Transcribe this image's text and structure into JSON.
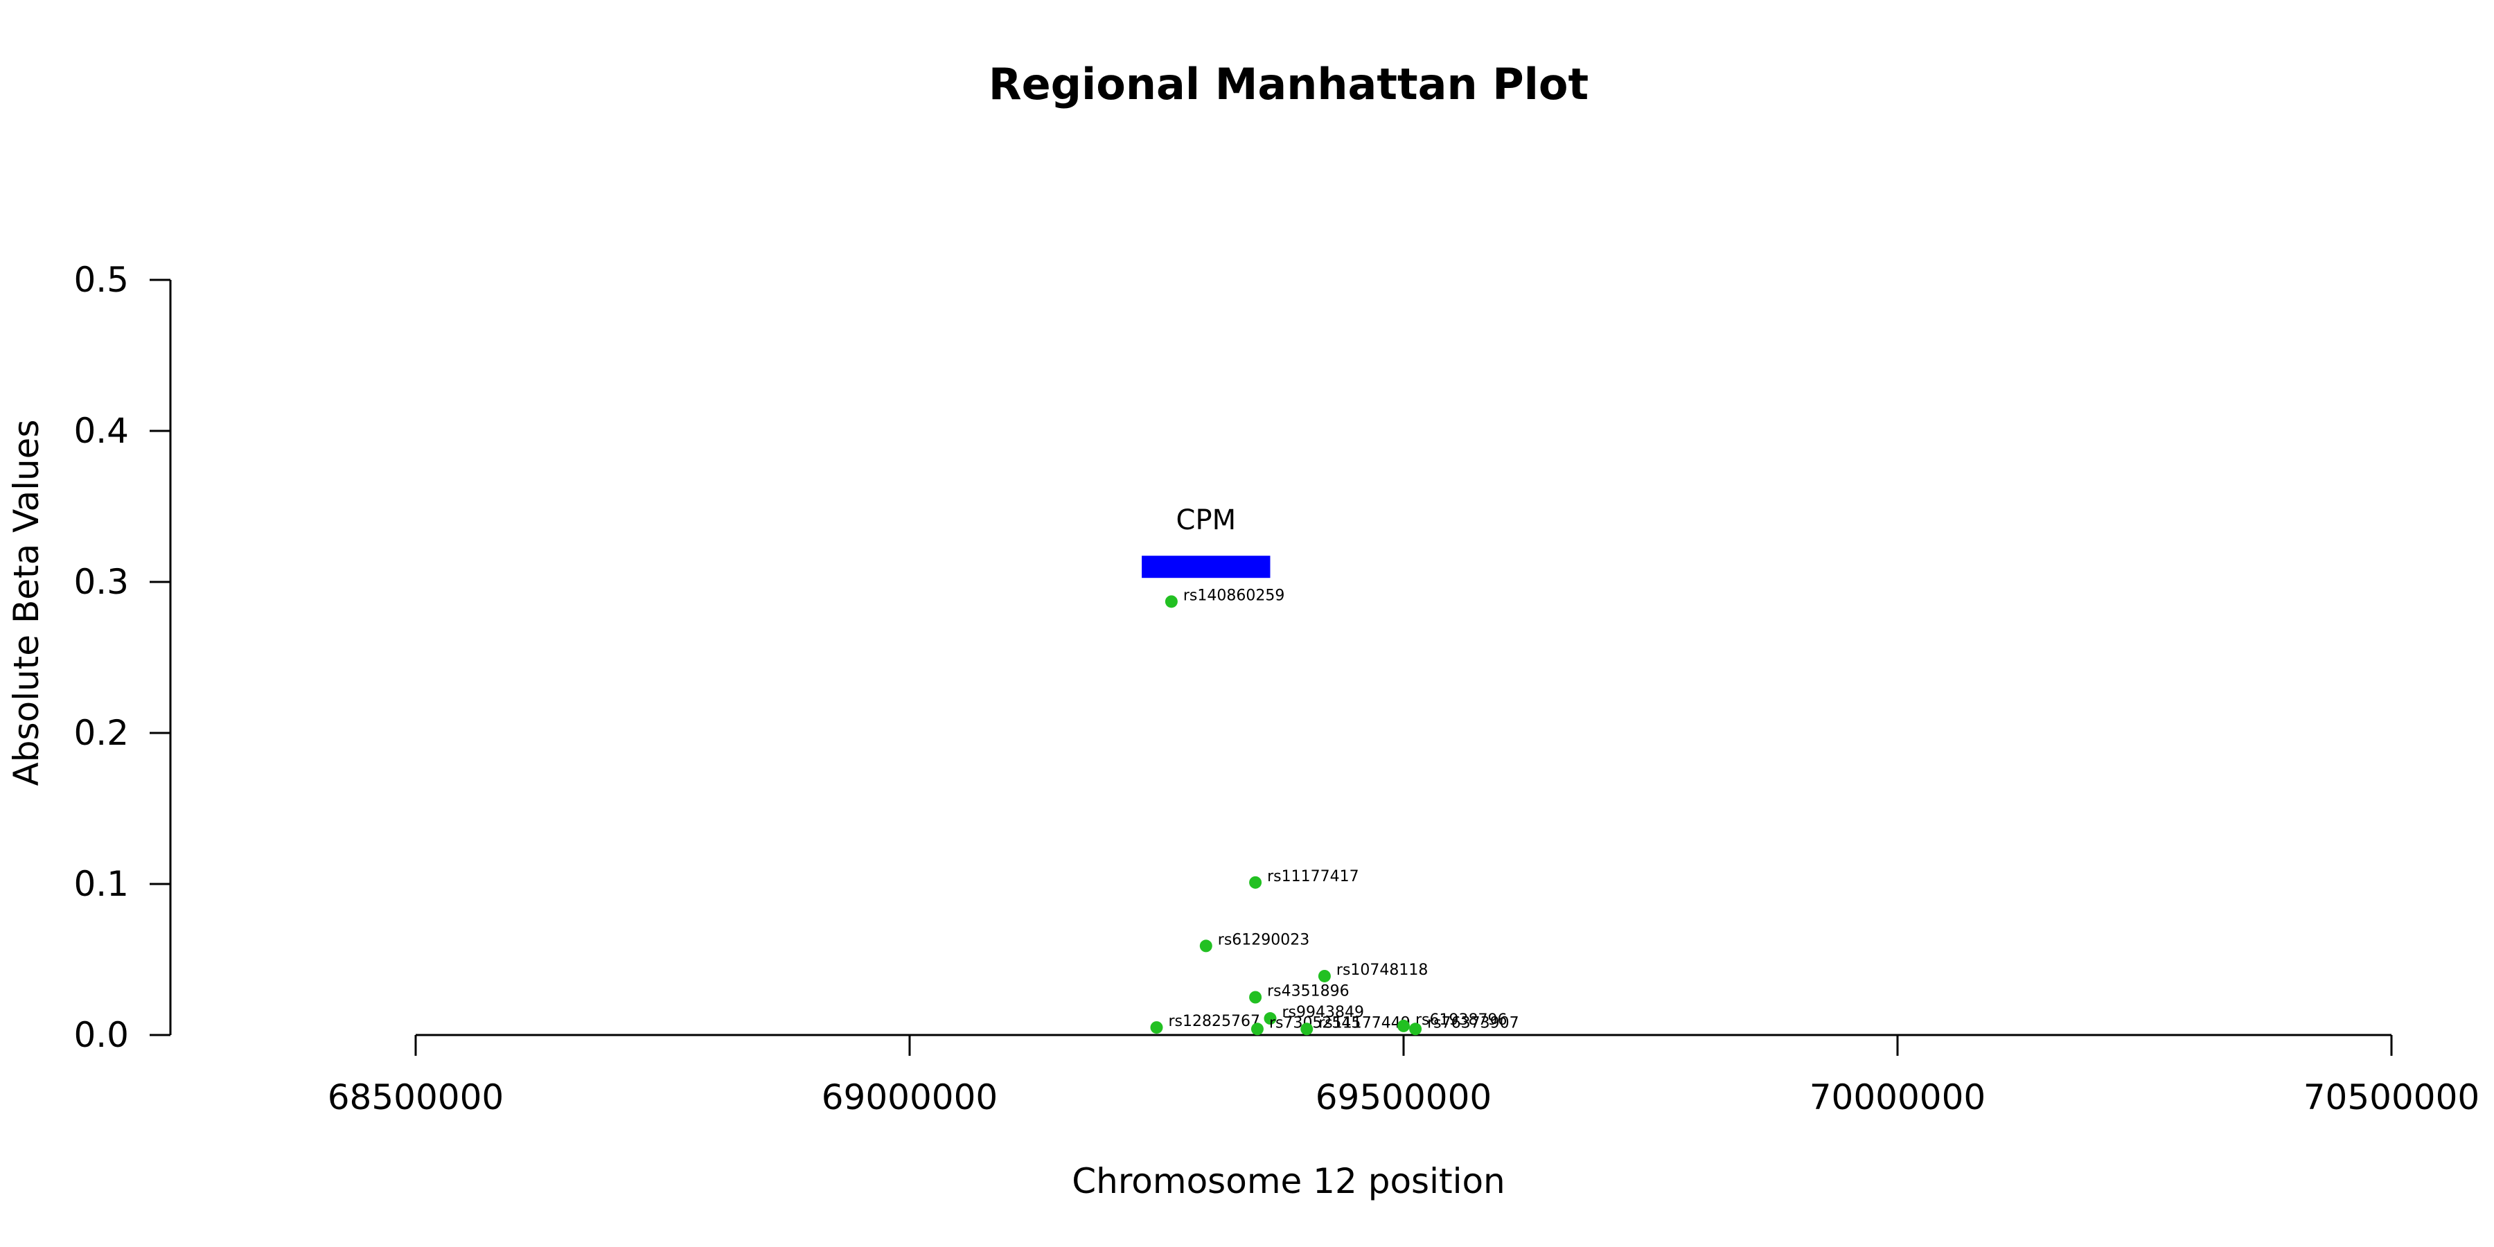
{
  "chart_data": {
    "type": "scatter",
    "title": "Regional Manhattan Plot",
    "xlabel": "Chromosome 12 position",
    "ylabel": "Absolute Beta Values",
    "xlim": [
      68500000,
      70500000
    ],
    "ylim": [
      0,
      0.5
    ],
    "x_ticks": [
      "68500000",
      "69000000",
      "69500000",
      "70000000",
      "70500000"
    ],
    "y_ticks": [
      "0.0",
      "0.1",
      "0.2",
      "0.3",
      "0.4",
      "0.5"
    ],
    "grid": false,
    "point_color": "#22c022",
    "points": [
      {
        "label": "rs140860259",
        "x": 69265000,
        "y": 0.287
      },
      {
        "label": "rs11177417",
        "x": 69350000,
        "y": 0.101
      },
      {
        "label": "rs61290023",
        "x": 69300000,
        "y": 0.059
      },
      {
        "label": "rs10748118",
        "x": 69420000,
        "y": 0.039
      },
      {
        "label": "rs4351896",
        "x": 69350000,
        "y": 0.025
      },
      {
        "label": "rs9943849",
        "x": 69365000,
        "y": 0.011
      },
      {
        "label": "rs12825767",
        "x": 69250000,
        "y": 0.005
      },
      {
        "label": "rs73052545",
        "x": 69352000,
        "y": 0.004
      },
      {
        "label": "rs11177449",
        "x": 69402000,
        "y": 0.004
      },
      {
        "label": "rs61938796",
        "x": 69500000,
        "y": 0.006
      },
      {
        "label": "rs76373907",
        "x": 69512000,
        "y": 0.004
      }
    ],
    "gene": {
      "name": "CPM",
      "start": 69235000,
      "end": 69365000,
      "y": 0.31,
      "color": "#0000ff"
    }
  }
}
